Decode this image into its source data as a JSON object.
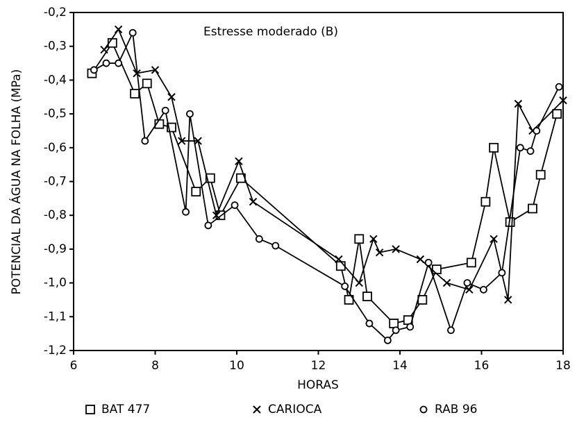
{
  "chart_data": {
    "type": "line",
    "annotation": "Estresse moderado (B)",
    "xlabel": "HORAS",
    "ylabel": "POTENCIAL DA ÁGUA NA FOLHA (MPa)",
    "xlim": [
      6,
      18
    ],
    "xticks": [
      6,
      8,
      10,
      12,
      14,
      16,
      18
    ],
    "ylim": [
      -1.2,
      -0.2
    ],
    "yticks": [
      {
        "value": -1.2,
        "label": "-1,2"
      },
      {
        "value": -1.1,
        "label": "-1,1"
      },
      {
        "value": -1.0,
        "label": "-1,0"
      },
      {
        "value": -0.9,
        "label": "-0,9"
      },
      {
        "value": -0.8,
        "label": "-0,8"
      },
      {
        "value": -0.7,
        "label": "-0,7"
      },
      {
        "value": -0.6,
        "label": "-0,6"
      },
      {
        "value": -0.5,
        "label": "-0,5"
      },
      {
        "value": -0.4,
        "label": "-0,4"
      },
      {
        "value": -0.3,
        "label": "-0,3"
      },
      {
        "value": -0.2,
        "label": "-0,2"
      }
    ],
    "series": [
      {
        "name": "BAT 477",
        "color": "#000000",
        "marker": "square",
        "x": [
          6.45,
          6.95,
          7.5,
          7.8,
          8.1,
          8.4,
          9.0,
          9.35,
          9.6,
          10.1,
          12.55,
          12.75,
          13.0,
          13.2,
          13.85,
          14.2,
          14.55,
          14.9,
          15.75,
          16.1,
          16.3,
          16.7,
          17.25,
          17.45,
          17.85
        ],
        "values": [
          -0.38,
          -0.29,
          -0.44,
          -0.41,
          -0.53,
          -0.54,
          -0.73,
          -0.69,
          -0.8,
          -0.69,
          -0.95,
          -1.05,
          -0.87,
          -1.04,
          -1.12,
          -1.11,
          -1.05,
          -0.96,
          -0.94,
          -0.76,
          -0.6,
          -0.82,
          -0.78,
          -0.68,
          -0.5
        ]
      },
      {
        "name": "CARIOCA",
        "color": "#000000",
        "marker": "x",
        "x": [
          6.75,
          7.1,
          7.55,
          8.0,
          8.4,
          8.65,
          9.05,
          9.5,
          10.05,
          10.4,
          12.5,
          13.0,
          13.35,
          13.5,
          13.9,
          14.5,
          15.15,
          15.7,
          16.3,
          16.65,
          16.9,
          17.25,
          18.0
        ],
        "values": [
          -0.31,
          -0.25,
          -0.38,
          -0.37,
          -0.45,
          -0.58,
          -0.58,
          -0.8,
          -0.64,
          -0.76,
          -0.93,
          -1.0,
          -0.87,
          -0.91,
          -0.9,
          -0.93,
          -1.0,
          -1.02,
          -0.87,
          -1.05,
          -0.47,
          -0.55,
          -0.46
        ]
      },
      {
        "name": "RAB 96",
        "color": "#000000",
        "marker": "circle",
        "x": [
          6.5,
          6.8,
          7.1,
          7.45,
          7.75,
          8.25,
          8.75,
          8.85,
          9.3,
          9.95,
          10.55,
          10.95,
          12.65,
          13.25,
          13.7,
          13.9,
          14.25,
          14.7,
          15.25,
          15.65,
          16.05,
          16.5,
          16.95,
          17.2,
          17.35,
          17.9
        ],
        "values": [
          -0.37,
          -0.35,
          -0.35,
          -0.26,
          -0.58,
          -0.49,
          -0.79,
          -0.5,
          -0.83,
          -0.77,
          -0.87,
          -0.89,
          -1.01,
          -1.12,
          -1.17,
          -1.14,
          -1.13,
          -0.94,
          -1.14,
          -1.0,
          -1.02,
          -0.97,
          -0.6,
          -0.61,
          -0.55,
          -0.42
        ]
      }
    ]
  }
}
